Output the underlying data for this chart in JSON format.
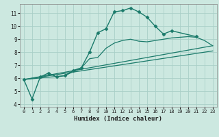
{
  "background_color": "#cce8e0",
  "grid_color": "#aacfc8",
  "line_color": "#1a7a6a",
  "xlabel": "Humidex (Indice chaleur)",
  "xlim": [
    -0.5,
    23.5
  ],
  "ylim": [
    3.8,
    11.7
  ],
  "xticks": [
    0,
    1,
    2,
    3,
    4,
    5,
    6,
    7,
    8,
    9,
    10,
    11,
    12,
    13,
    14,
    15,
    16,
    17,
    18,
    19,
    20,
    21,
    22,
    23
  ],
  "yticks": [
    4,
    5,
    6,
    7,
    8,
    9,
    10,
    11
  ],
  "series": [
    {
      "x": [
        0,
        1,
        2,
        3,
        4,
        5,
        6,
        7,
        8,
        9,
        10,
        11,
        12,
        13,
        14,
        15,
        16,
        17,
        18,
        21
      ],
      "y": [
        5.9,
        4.4,
        6.1,
        6.4,
        6.1,
        6.2,
        6.6,
        6.8,
        8.0,
        9.5,
        9.8,
        11.1,
        11.2,
        11.4,
        11.1,
        10.7,
        10.0,
        9.4,
        9.65,
        9.2
      ],
      "marker": "D",
      "markersize": 2.5,
      "linewidth": 1.0
    },
    {
      "x": [
        0,
        5,
        6,
        7,
        8,
        9,
        10,
        11,
        12,
        13,
        14,
        15,
        16,
        17,
        18,
        19,
        20,
        21,
        22,
        23
      ],
      "y": [
        5.9,
        6.2,
        6.5,
        6.8,
        7.5,
        7.6,
        8.3,
        8.7,
        8.9,
        9.0,
        8.85,
        8.8,
        8.9,
        9.0,
        9.1,
        9.15,
        9.2,
        9.15,
        8.9,
        8.5
      ],
      "marker": null,
      "markersize": 0,
      "linewidth": 0.9
    },
    {
      "x": [
        0,
        23
      ],
      "y": [
        5.9,
        8.5
      ],
      "marker": null,
      "markersize": 0,
      "linewidth": 0.9
    },
    {
      "x": [
        0,
        23
      ],
      "y": [
        5.9,
        8.1
      ],
      "marker": null,
      "markersize": 0,
      "linewidth": 0.9
    }
  ]
}
